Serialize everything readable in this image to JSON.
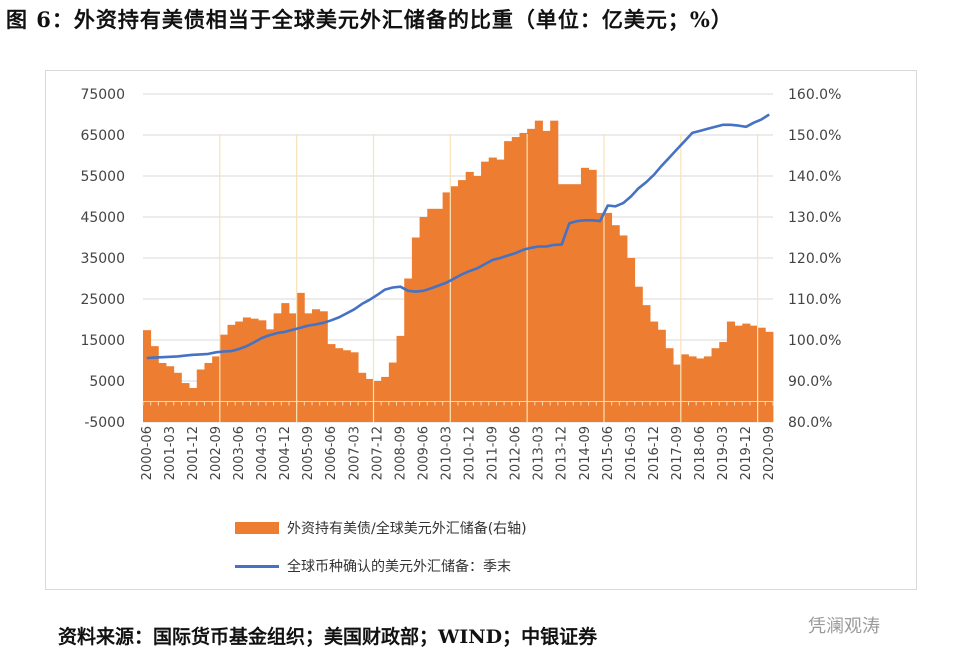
{
  "title": "图 6：外资持有美债相当于全球美元外汇储备的比重（单位：亿美元；%）",
  "footer": "资料来源：国际货币基金组织；美国财政部；WIND；中银证券",
  "watermark": "凭澜观涛",
  "colors": {
    "bars": "#ed7d31",
    "line": "#4472c4",
    "grid": "#d9d9d9"
  },
  "chart_data": {
    "type": "bar+line",
    "title": "",
    "x_frequency": "quarterly",
    "x_start": "2000-06",
    "x_tick_labels": [
      "2000-06",
      "2001-03",
      "2001-12",
      "2002-09",
      "2003-06",
      "2004-03",
      "2004-12",
      "2005-09",
      "2006-06",
      "2007-03",
      "2007-12",
      "2008-09",
      "2009-06",
      "2010-03",
      "2010-12",
      "2011-09",
      "2012-06",
      "2013-03",
      "2013-12",
      "2014-09",
      "2015-06",
      "2016-03",
      "2016-12",
      "2017-09",
      "2018-06",
      "2019-03",
      "2019-12",
      "2020-09"
    ],
    "left_axis": {
      "ylim": [
        -5000,
        75000
      ],
      "ticks": [
        "75000",
        "65000",
        "55000",
        "45000",
        "35000",
        "25000",
        "15000",
        "5000",
        "-5000"
      ]
    },
    "right_axis": {
      "ylim": [
        80,
        160
      ],
      "ticks": [
        "160.0%",
        "150.0%",
        "140.0%",
        "130.0%",
        "120.0%",
        "110.0%",
        "100.0%",
        "90.0%",
        "80.0%"
      ]
    },
    "legend_position": "bottom",
    "series": [
      {
        "name": "外资持有美债/全球美元外汇储备(右轴)",
        "type": "bar",
        "axis": "right",
        "unit": "%",
        "values": [
          102.4,
          98.5,
          94.4,
          93.6,
          92,
          89.5,
          88.3,
          92.8,
          94.4,
          96,
          101.3,
          103.7,
          104.5,
          105.5,
          105.2,
          104.8,
          102.6,
          106.5,
          109,
          106.5,
          111.5,
          106.5,
          107.5,
          107,
          99,
          98,
          97.5,
          97,
          92,
          90.5,
          90,
          91,
          94.5,
          101,
          115,
          125,
          130,
          132,
          132,
          136,
          137.5,
          139,
          141,
          140,
          143.5,
          144.5,
          144,
          148.5,
          149.5,
          150.5,
          151.5,
          153.5,
          151,
          153.5,
          138,
          138,
          138,
          142,
          141.5,
          131,
          131,
          128,
          125.5,
          120,
          113,
          108.5,
          104.5,
          102.5,
          98,
          94,
          96.5,
          96,
          95.5,
          96,
          98,
          99.5,
          104.5,
          103.5,
          104,
          103.5,
          103,
          102
        ]
      },
      {
        "name": "全球币种确认的美元外汇储备：季末",
        "type": "line",
        "axis": "left",
        "unit": "亿美元",
        "values": [
          10600,
          10700,
          10800,
          10900,
          11000,
          11200,
          11400,
          11500,
          11600,
          12000,
          12200,
          12300,
          12800,
          13500,
          14500,
          15500,
          16200,
          16700,
          17000,
          17500,
          18000,
          18500,
          18800,
          19200,
          19800,
          20500,
          21500,
          22500,
          23800,
          24800,
          26000,
          27300,
          27800,
          28000,
          27000,
          26800,
          27000,
          27600,
          28300,
          29000,
          30000,
          31000,
          31800,
          32500,
          33500,
          34500,
          35000,
          35600,
          36200,
          37000,
          37500,
          37800,
          37800,
          38200,
          38300,
          43500,
          44000,
          44200,
          44200,
          44000,
          47800,
          47600,
          48400,
          50000,
          52000,
          53500,
          55300,
          57500,
          59500,
          61500,
          63500,
          65500,
          66000,
          66500,
          67000,
          67500,
          67500,
          67300,
          67000,
          68000,
          68800,
          70000
        ]
      }
    ]
  }
}
